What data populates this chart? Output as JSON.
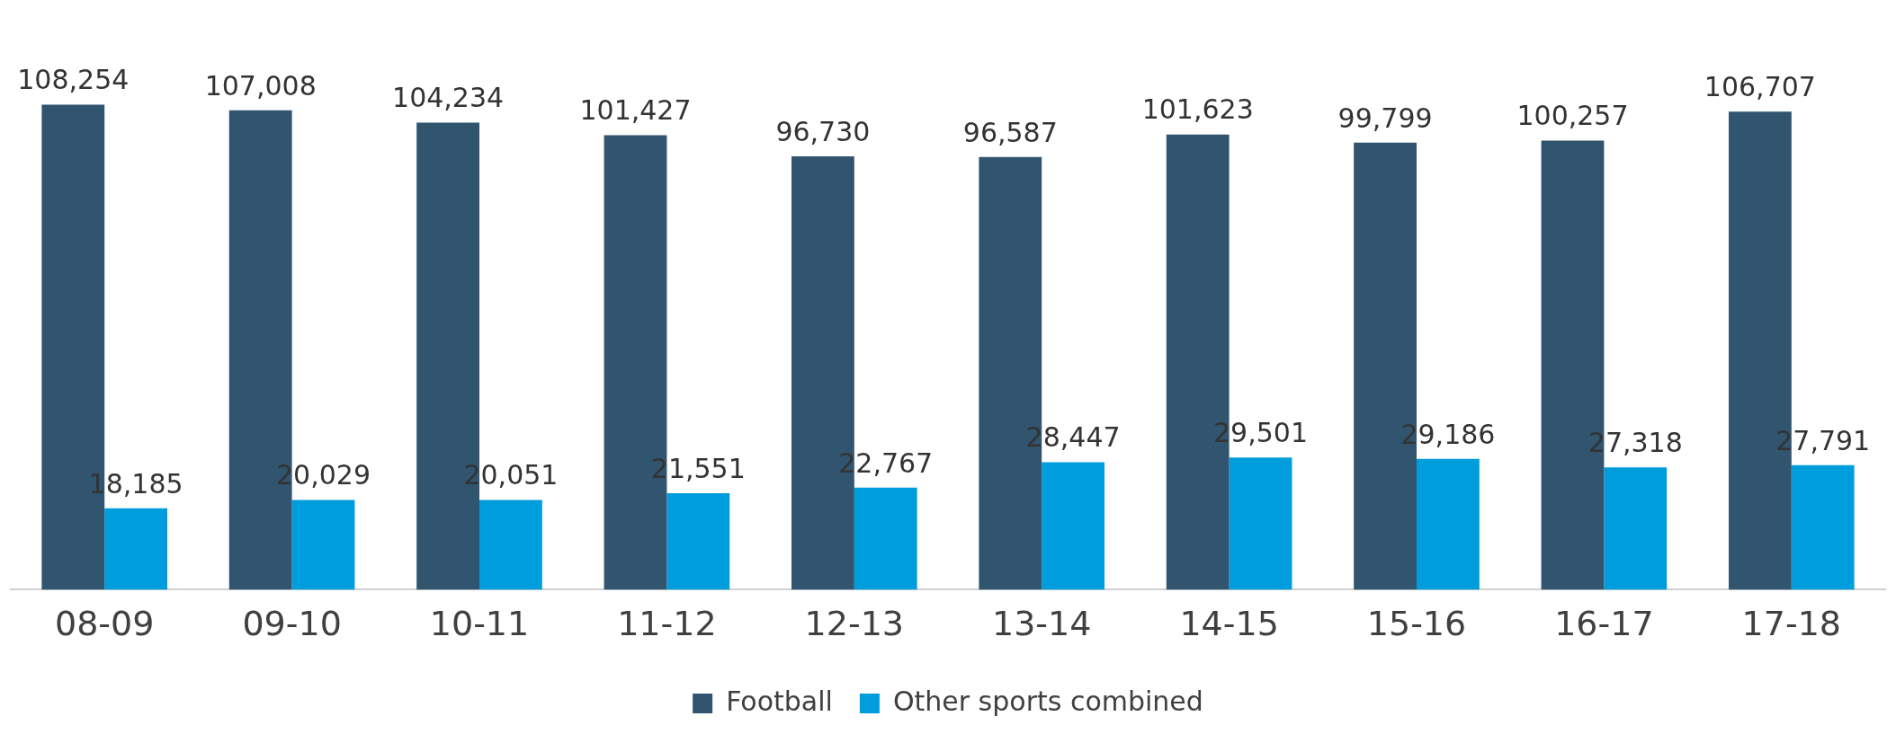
{
  "chart_data": {
    "type": "bar",
    "categories": [
      "08-09",
      "09-10",
      "10-11",
      "11-12",
      "12-13",
      "13-14",
      "14-15",
      "15-16",
      "16-17",
      "17-18"
    ],
    "series": [
      {
        "name": "Football",
        "color": "#31546f",
        "values": [
          108254,
          107008,
          104234,
          101427,
          96730,
          96587,
          101623,
          99799,
          100257,
          106707
        ],
        "value_labels": [
          "108,254",
          "107,008",
          "104,234",
          "101,427",
          "96,730",
          "96,587",
          "101,623",
          "99,799",
          "100,257",
          "106,707"
        ]
      },
      {
        "name": "Other sports combined",
        "color": "#009ddc",
        "values": [
          18185,
          20029,
          20051,
          21551,
          22767,
          28447,
          29501,
          29186,
          27318,
          27791
        ],
        "value_labels": [
          "18,185",
          "20,029",
          "20,051",
          "21,551",
          "22,767",
          "28,447",
          "29,501",
          "29,186",
          "27,318",
          "27,791"
        ]
      }
    ],
    "legend": "bottom",
    "grid": false,
    "tick_labels": "x"
  }
}
